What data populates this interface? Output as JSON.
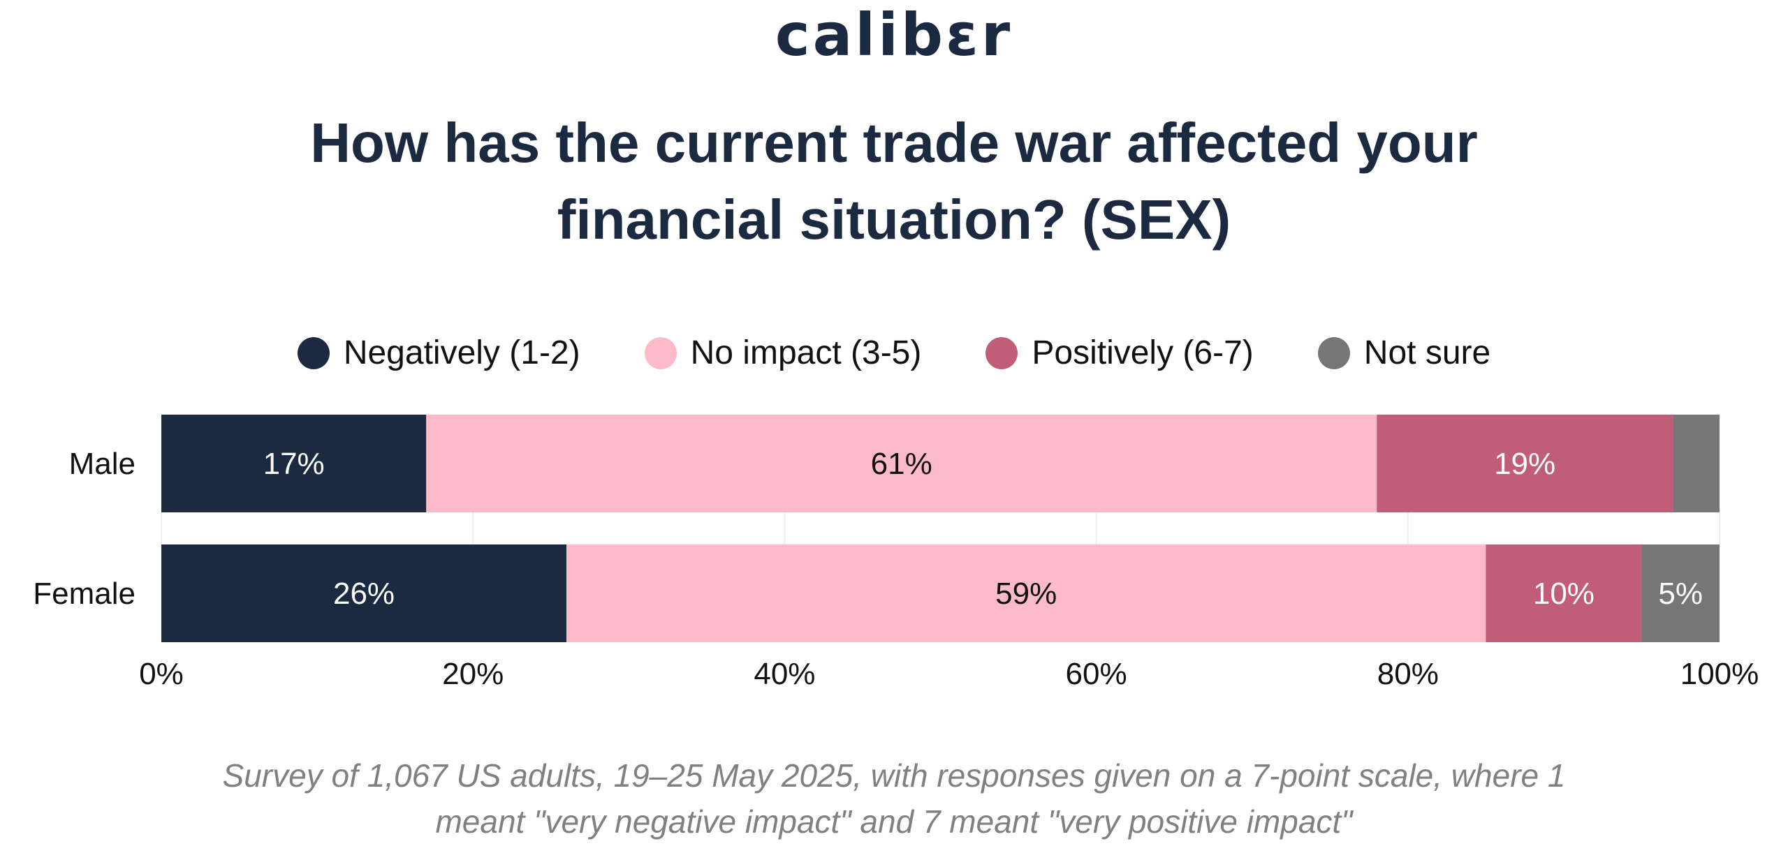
{
  "brand": {
    "logo_text": "calibɛr"
  },
  "chart_data": {
    "type": "bar",
    "orientation": "horizontal",
    "stacked": true,
    "title": "How has the current trade war affected your financial situation? (SEX)",
    "categories": [
      "Male",
      "Female"
    ],
    "series": [
      {
        "name": "Negatively (1-2)",
        "color": "#1b2a40",
        "label_color": "#ffffff",
        "values": [
          17,
          26
        ]
      },
      {
        "name": "No impact (3-5)",
        "color": "#fdbac8",
        "label_color": "#111111",
        "values": [
          61,
          59
        ]
      },
      {
        "name": "Positively (6-7)",
        "color": "#c25d77",
        "label_color": "#ffffff",
        "values": [
          19,
          10
        ]
      },
      {
        "name": "Not sure",
        "color": "#767676",
        "label_color": "#ffffff",
        "values": [
          3,
          5
        ]
      }
    ],
    "data_labels": [
      [
        "17%",
        "61%",
        "19%",
        ""
      ],
      [
        "26%",
        "59%",
        "10%",
        "5%"
      ]
    ],
    "xlim": [
      0,
      100
    ],
    "x_ticks": [
      0,
      20,
      40,
      60,
      80,
      100
    ],
    "x_tick_labels": [
      "0%",
      "20%",
      "40%",
      "60%",
      "80%",
      "100%"
    ],
    "legend_position": "top",
    "grid": "vertical",
    "caption": "Survey of 1,067 US adults, 19–25 May 2025, with responses given on a 7-point scale, where 1 meant \"very negative impact\" and 7 meant \"very positive impact\""
  }
}
